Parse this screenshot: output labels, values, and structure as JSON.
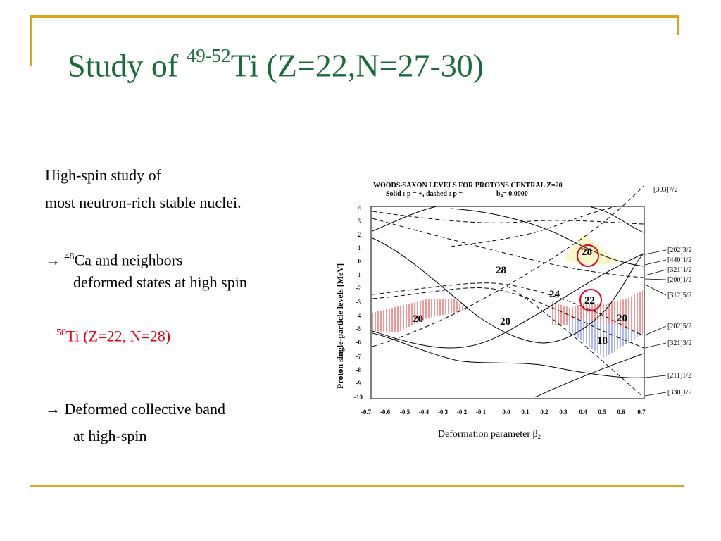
{
  "slide": {
    "title_prefix": "Study of",
    "title_super": "49-52",
    "title_rest": "Ti (Z=22,N=27-30)",
    "line1": "High-spin study of",
    "line2": "most neutron-rich stable nuclei.",
    "bullet1_arrow": "→",
    "bullet1_super": "48",
    "bullet1_text": "Ca and neighbors",
    "bullet1_line2": "deformed states at high spin",
    "highlight_super": "50",
    "highlight_text": "Ti (Z=22, N=28)",
    "bullet2_arrow": "→",
    "bullet2_text": "Deformed collective band",
    "bullet2_line2": "at high-spin",
    "accent_color": "#d9a520",
    "title_color": "#1a6b3a",
    "highlight_color": "#e0001a"
  },
  "figure": {
    "header_line1": "WOODS-SAXON LEVELS FOR PROTONS CENTRAL Z=20",
    "header_line2": "Solid :  p = +, dashed :  p = -",
    "header_b4": "b",
    "header_b4_sub": "4",
    "header_b4_value": "= 0.0000",
    "ylabel": "Proton single-particle levels [MeV]",
    "xlabel": "Deformation parameter β",
    "xlabel_sub": "2",
    "x_ticks": [
      "-0.7",
      "-0.6",
      "-0.5",
      "-0.4",
      "-0.3",
      "-0.2",
      "-0.1",
      "0.0",
      "0.1",
      "0.2",
      "0.3",
      "0.4",
      "0.5",
      "0.6",
      "0.7"
    ],
    "y_ticks": [
      "4",
      "3",
      "2",
      "1",
      "0",
      "-1",
      "-2",
      "-3",
      "-4",
      "-5",
      "-6",
      "-7",
      "-8",
      "-9",
      "-10"
    ],
    "level_labels": [
      "[303]7/2",
      "[202]3/2",
      "[440]1/2",
      "[321]1/2",
      "[200]1/2",
      "[312]5/2",
      "[202]5/2",
      "[321]3/2",
      "[211]1/2",
      "[330]1/2"
    ],
    "gap_labels": {
      "g28_upper": "28",
      "g28_mid": "28",
      "g20_left": "20",
      "g20_mid": "20",
      "g24": "24",
      "g22": "22",
      "g20_right": "20",
      "g18": "18"
    }
  }
}
